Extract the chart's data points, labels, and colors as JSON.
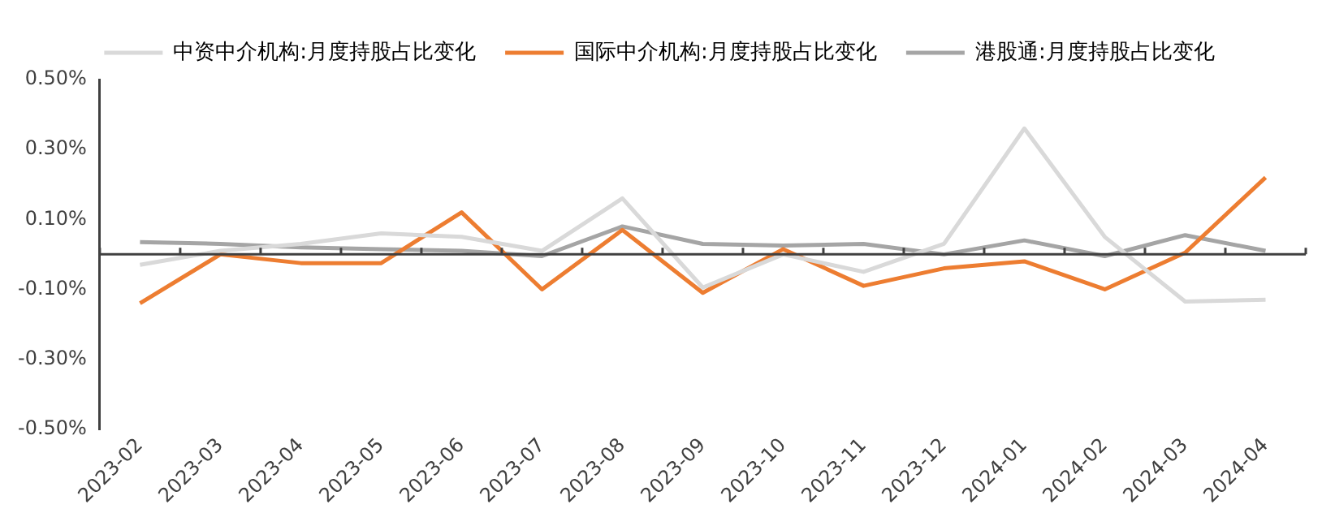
{
  "chart_data": {
    "type": "line",
    "categories": [
      "2023-02",
      "2023-03",
      "2023-04",
      "2023-05",
      "2023-06",
      "2023-07",
      "2023-08",
      "2023-09",
      "2023-10",
      "2023-11",
      "2023-12",
      "2024-01",
      "2024-02",
      "2024-03",
      "2024-04"
    ],
    "series": [
      {
        "name": "中资中介机构:月度持股占比变化",
        "color": "#d9d9d9",
        "values": [
          -0.03,
          0.01,
          0.03,
          0.06,
          0.05,
          0.01,
          0.16,
          -0.095,
          0.0,
          -0.05,
          0.03,
          0.36,
          0.05,
          -0.135,
          -0.13
        ]
      },
      {
        "name": "国际中介机构:月度持股占比变化",
        "color": "#ed7d31",
        "values": [
          -0.14,
          0.0,
          -0.025,
          -0.025,
          0.12,
          -0.1,
          0.07,
          -0.11,
          0.015,
          -0.09,
          -0.04,
          -0.02,
          -0.1,
          0.005,
          0.22
        ]
      },
      {
        "name": "港股通:月度持股占比变化",
        "color": "#a5a5a5",
        "values": [
          0.035,
          0.03,
          0.02,
          0.015,
          0.01,
          -0.005,
          0.08,
          0.03,
          0.025,
          0.03,
          0.0,
          0.04,
          -0.005,
          0.055,
          0.01
        ]
      }
    ],
    "ylim": [
      -0.5,
      0.5
    ],
    "yticks": [
      {
        "value": -0.5,
        "label": "-0.50%"
      },
      {
        "value": -0.3,
        "label": "-0.30%"
      },
      {
        "value": -0.1,
        "label": "-0.10%"
      },
      {
        "value": 0.1,
        "label": "0.10%"
      },
      {
        "value": 0.3,
        "label": "0.30%"
      },
      {
        "value": 0.5,
        "label": "0.50%"
      }
    ],
    "ref_lines": [
      {
        "axis": "y",
        "value": 0,
        "color": "#404040"
      }
    ],
    "grid": false,
    "legend": "top",
    "marker": "none",
    "line_style": "solid"
  }
}
